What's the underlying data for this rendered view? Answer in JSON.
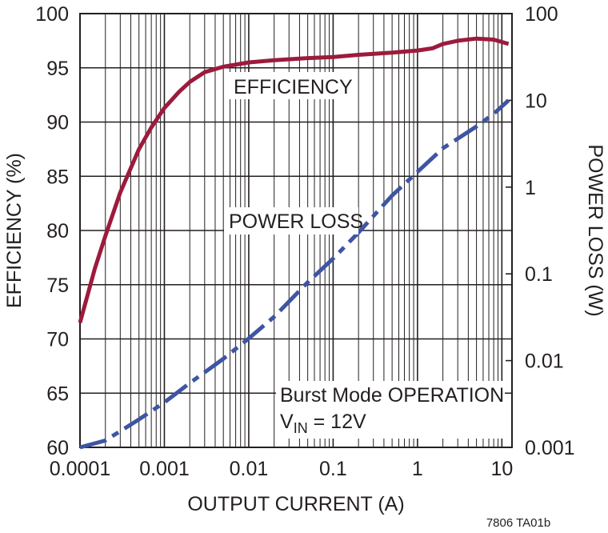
{
  "chart_data": {
    "type": "line",
    "xlabel": "OUTPUT CURRENT (A)",
    "ylabel_left": "EFFICIENCY (%)",
    "ylabel_right": "POWER LOSS (W)",
    "x_scale": "log",
    "xlim": [
      0.0001,
      10
    ],
    "ylim_left": [
      60,
      100
    ],
    "ylim_right": [
      0.001,
      100
    ],
    "y_right_scale": "log",
    "x_ticks": [
      "0.0001",
      "0.001",
      "0.01",
      "0.1",
      "1",
      "10"
    ],
    "y_left_ticks": [
      "60",
      "65",
      "70",
      "75",
      "80",
      "85",
      "90",
      "95",
      "100"
    ],
    "y_right_ticks": [
      "0.001",
      "0.01",
      "0.1",
      "1",
      "10",
      "100"
    ],
    "grid": true,
    "series": [
      {
        "name": "EFFICIENCY",
        "axis": "left",
        "color": "#9c1b3c",
        "style": "solid",
        "x": [
          0.0001,
          0.00015,
          0.0002,
          0.0003,
          0.0005,
          0.0007,
          0.001,
          0.0015,
          0.002,
          0.003,
          0.005,
          0.01,
          0.02,
          0.05,
          0.1,
          0.2,
          0.5,
          1,
          1.5,
          2,
          3,
          5,
          8,
          12
        ],
        "y": [
          71.5,
          76.5,
          79.5,
          83.5,
          87.5,
          89.5,
          91.3,
          92.8,
          93.7,
          94.6,
          95.1,
          95.5,
          95.7,
          95.9,
          96.0,
          96.2,
          96.4,
          96.6,
          96.8,
          97.2,
          97.5,
          97.7,
          97.6,
          97.2
        ]
      },
      {
        "name": "POWER LOSS",
        "axis": "right",
        "color": "#3e55a3",
        "style": "dashed",
        "x": [
          0.0001,
          0.0002,
          0.0005,
          0.001,
          0.002,
          0.005,
          0.01,
          0.02,
          0.05,
          0.1,
          0.2,
          0.5,
          1,
          2,
          5,
          8,
          12
        ],
        "y": [
          0.001,
          0.0012,
          0.0021,
          0.0033,
          0.0055,
          0.0105,
          0.018,
          0.032,
          0.08,
          0.15,
          0.3,
          0.8,
          1.5,
          2.8,
          5.0,
          7.0,
          10.0
        ]
      }
    ],
    "annotations": {
      "efficiency_label": "EFFICIENCY",
      "power_loss_label": "POWER LOSS",
      "condition_line1": "Burst Mode OPERATION",
      "condition_line2_prefix": "V",
      "condition_line2_subscript": "IN",
      "condition_line2_suffix": " = 12V"
    },
    "figure_id": "7806 TA01b"
  }
}
